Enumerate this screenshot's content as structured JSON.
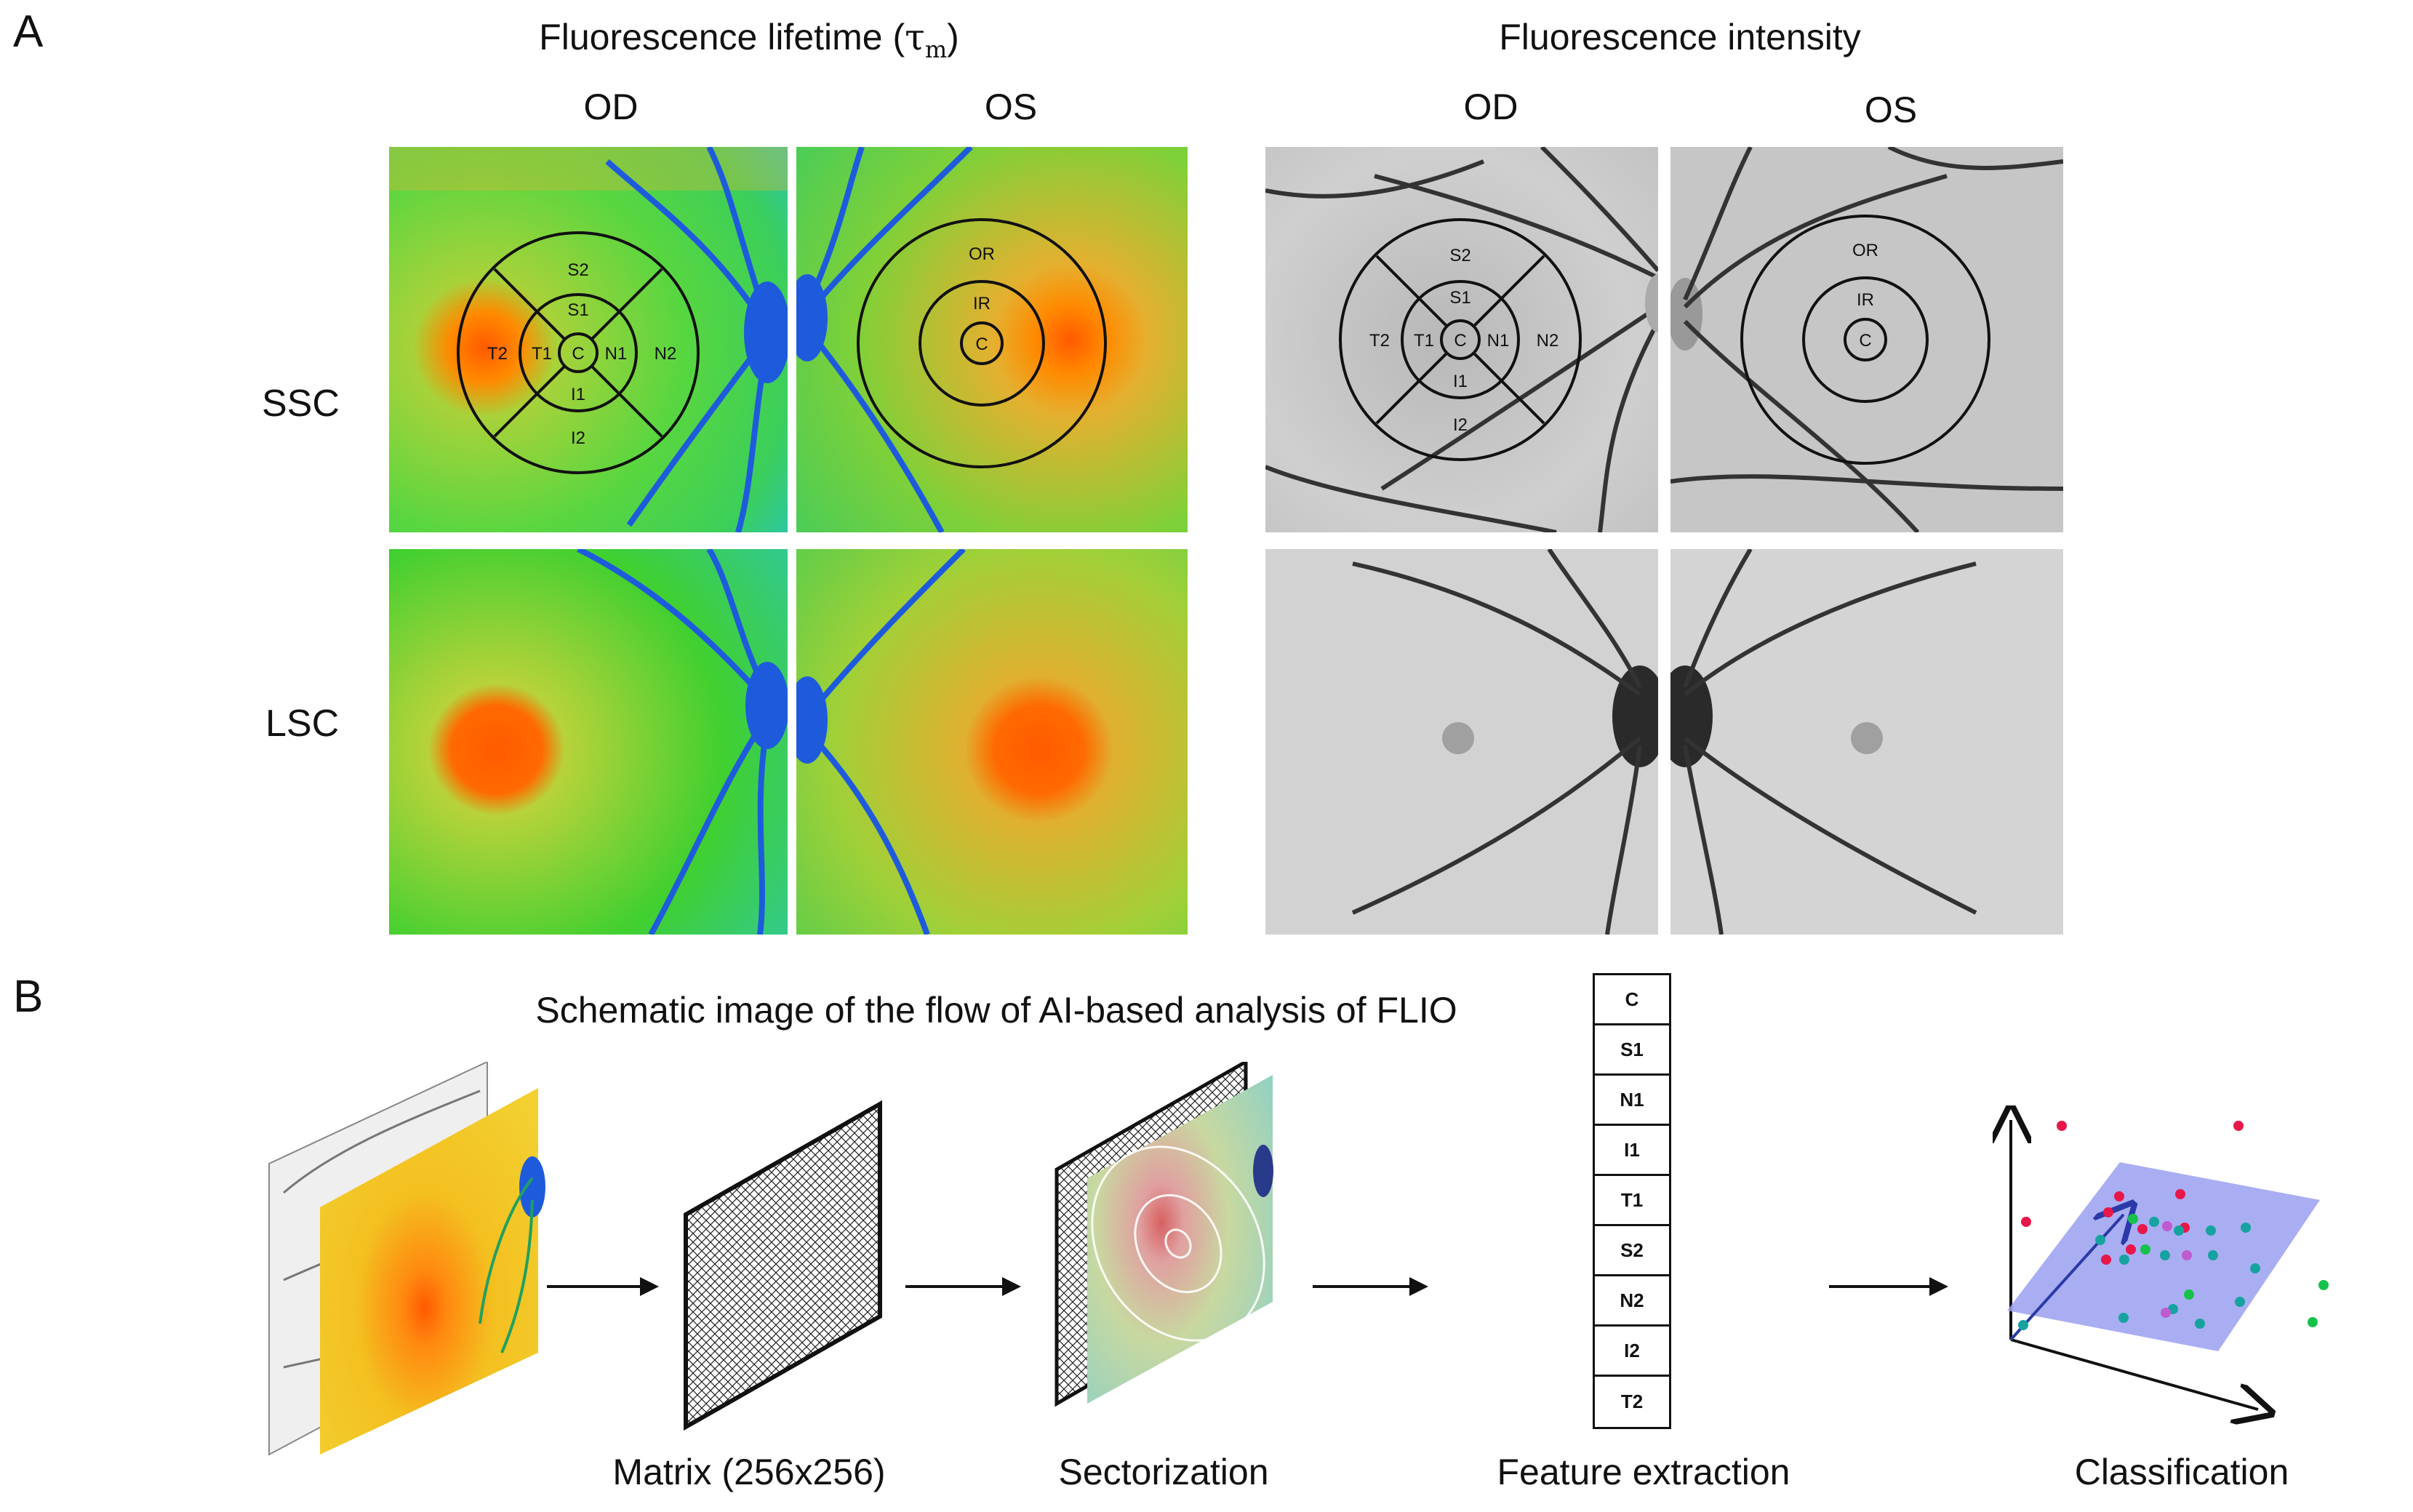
{
  "panel_a": {
    "letter": "A",
    "lifetime_title": "Fluorescence lifetime (",
    "lifetime_symbol": "τ",
    "lifetime_subscript": "m",
    "lifetime_close": ")",
    "intensity_title": "Fluorescence intensity",
    "eyes": [
      "OD",
      "OS",
      "OD",
      "OS"
    ],
    "rows": [
      "SSC",
      "LSC"
    ],
    "grid_labels_etdrs": [
      "S2",
      "S1",
      "T2",
      "T1",
      "C",
      "N1",
      "N2",
      "I1",
      "I2"
    ],
    "grid_labels_ring": [
      "OR",
      "IR",
      "C"
    ]
  },
  "panel_b": {
    "letter": "B",
    "title": "Schematic image of the flow of AI-based analysis of FLIO",
    "steps": [
      "Matrix (256x256)",
      "Sectorization",
      "Feature extraction",
      "Classification"
    ],
    "features": [
      "C",
      "S1",
      "N1",
      "I1",
      "T1",
      "S2",
      "N2",
      "I2",
      "T2"
    ]
  },
  "colors": {
    "lifetime_green": "#33cc33",
    "lifetime_orange": "#ff6a00",
    "vessel_blue": "#1e5bdc",
    "plane_blue": "#9aa0f0",
    "point_red": "#e8174a",
    "point_teal": "#16a3a0",
    "point_green": "#17c24a",
    "point_purple": "#c05ad0"
  }
}
